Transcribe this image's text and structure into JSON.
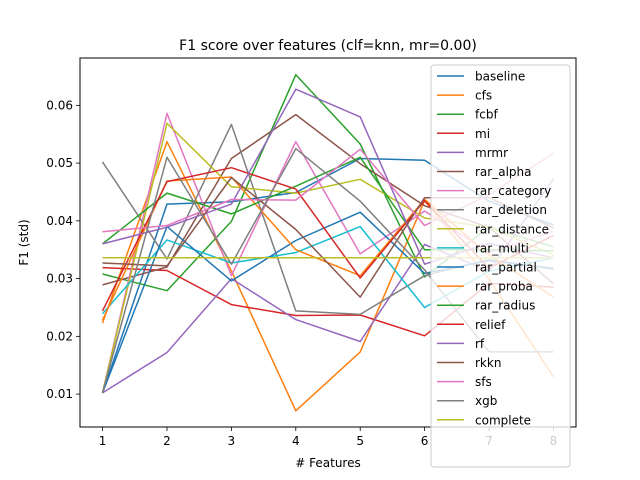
{
  "chart_data": {
    "type": "line",
    "title": "F1 score over features (clf=knn, mr=0.00)",
    "xlabel": "# Features",
    "ylabel": "F1 (std)",
    "xlim": [
      0.65,
      8.35
    ],
    "ylim": [
      0.0043,
      0.0682
    ],
    "xticks": [
      1,
      2,
      3,
      4,
      5,
      6,
      7,
      8
    ],
    "yticks": [
      0.01,
      0.02,
      0.03,
      0.04,
      0.05,
      0.06
    ],
    "ytick_labels": [
      "0.01",
      "0.02",
      "0.03",
      "0.04",
      "0.05",
      "0.06"
    ],
    "grid": false,
    "legend_position": "right",
    "x": [
      1,
      2,
      3,
      4,
      5,
      6,
      7,
      8
    ],
    "series": [
      {
        "name": "baseline",
        "color": "#1f77b4",
        "values": [
          0.0102,
          0.0429,
          0.0433,
          0.0449,
          0.0508,
          0.0505,
          0.0434,
          0.0393
        ]
      },
      {
        "name": "cfs",
        "color": "#ff7f0e",
        "values": [
          0.0223,
          0.0537,
          0.0313,
          0.0071,
          0.0173,
          0.0435,
          0.0299,
          0.013
        ]
      },
      {
        "name": "fcbf",
        "color": "#2ca02c",
        "values": [
          0.0308,
          0.0279,
          0.0399,
          0.0653,
          0.0533,
          0.0303,
          0.0389,
          0.0355
        ]
      },
      {
        "name": "mi",
        "color": "#d62728",
        "values": [
          0.0319,
          0.0314,
          0.0255,
          0.0236,
          0.0237,
          0.0201,
          0.0292,
          0.0285
        ]
      },
      {
        "name": "mrmr",
        "color": "#9467bd",
        "values": [
          0.0102,
          0.0172,
          0.03,
          0.0229,
          0.0191,
          0.0359,
          0.0313,
          0.0473
        ]
      },
      {
        "name": "rar_alpha",
        "color": "#8c564b",
        "values": [
          0.0289,
          0.032,
          0.0508,
          0.0584,
          0.0499,
          0.0426,
          0.0389,
          0.0291
        ]
      },
      {
        "name": "rar_category",
        "color": "#e377c2",
        "values": [
          0.0102,
          0.0586,
          0.0305,
          0.0537,
          0.0343,
          0.0417,
          0.0345,
          0.0382
        ]
      },
      {
        "name": "rar_deletion",
        "color": "#7f7f7f",
        "values": [
          0.0502,
          0.0334,
          0.0567,
          0.0244,
          0.0238,
          0.0305,
          0.0333,
          0.0316
        ]
      },
      {
        "name": "rar_distance",
        "color": "#bcbd22",
        "values": [
          0.0102,
          0.0569,
          0.0459,
          0.0448,
          0.0472,
          0.0405,
          0.0389,
          0.0341
        ]
      },
      {
        "name": "rar_multi",
        "color": "#17becf",
        "values": [
          0.0239,
          0.0367,
          0.0327,
          0.0345,
          0.039,
          0.025,
          0.0313,
          0.0336
        ]
      },
      {
        "name": "rar_partial",
        "color": "#1f77b4",
        "values": [
          0.0102,
          0.039,
          0.0296,
          0.0366,
          0.0415,
          0.0309,
          0.0331,
          0.0318
        ]
      },
      {
        "name": "rar_proba",
        "color": "#ff7f0e",
        "values": [
          0.0228,
          0.0469,
          0.0476,
          0.035,
          0.0305,
          0.0437,
          0.0341,
          0.0268
        ]
      },
      {
        "name": "rar_radius",
        "color": "#2ca02c",
        "values": [
          0.036,
          0.0448,
          0.0412,
          0.046,
          0.051,
          0.035,
          0.035,
          0.0348
        ]
      },
      {
        "name": "relief",
        "color": "#d62728",
        "values": [
          0.0244,
          0.0468,
          0.0492,
          0.0455,
          0.0301,
          0.0435,
          0.0318,
          0.0375
        ]
      },
      {
        "name": "rf",
        "color": "#9467bd",
        "values": [
          0.036,
          0.0389,
          0.0429,
          0.0628,
          0.058,
          0.0325,
          0.0361,
          0.0336
        ]
      },
      {
        "name": "rkkn",
        "color": "#8c564b",
        "values": [
          0.0327,
          0.0322,
          0.0475,
          0.0385,
          0.0268,
          0.044,
          0.044,
          0.0388
        ]
      },
      {
        "name": "sfs",
        "color": "#e377c2",
        "values": [
          0.0381,
          0.0392,
          0.0437,
          0.0436,
          0.0524,
          0.0392,
          0.0445,
          0.0517
        ]
      },
      {
        "name": "xgb",
        "color": "#7f7f7f",
        "values": [
          0.0102,
          0.051,
          0.0325,
          0.0525,
          0.0434,
          0.0315,
          0.0173,
          0.0173
        ]
      },
      {
        "name": "complete",
        "color": "#bcbd22",
        "values": [
          0.0336,
          0.0336,
          0.0336,
          0.0336,
          0.0336,
          0.0336,
          0.0336,
          0.0336
        ]
      }
    ]
  }
}
